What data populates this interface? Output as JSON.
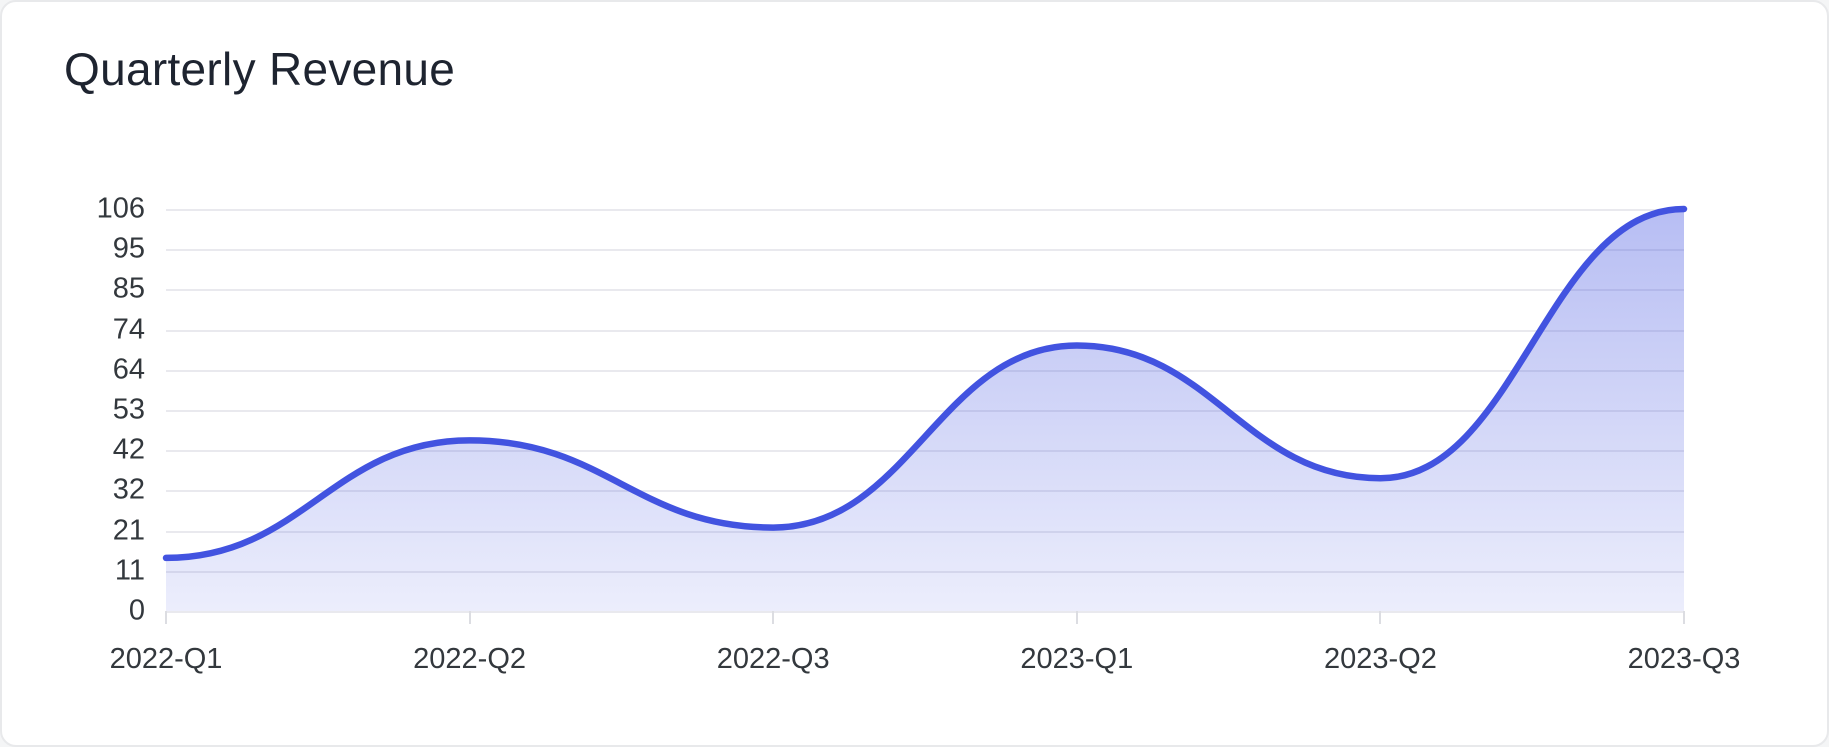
{
  "page": {
    "title": "Quarterly Revenue"
  },
  "chart_data": {
    "type": "area",
    "title": "Quarterly Revenue",
    "categories": [
      "2022-Q1",
      "2022-Q2",
      "2022-Q3",
      "2023-Q1",
      "2023-Q2",
      "2023-Q3"
    ],
    "values": [
      14,
      45,
      22,
      70,
      35,
      106
    ],
    "xlabel": "",
    "ylabel": "",
    "ylim": [
      0,
      106
    ],
    "y_tick_labels": [
      "106",
      "95",
      "85",
      "74",
      "64",
      "53",
      "42",
      "32",
      "21",
      "11",
      "0"
    ],
    "grid": "horizontal-only",
    "legend": "none",
    "line_style": "smooth-spline",
    "colors": {
      "page_bg": "#f4f5f6",
      "card_bg": "#ffffff",
      "card_border": "#e8e9eb",
      "title": "#1e2430",
      "axis_label": "#33383d",
      "gridline": "#e9e9ee",
      "axis_tick": "#dcdde2",
      "line": "#4253e0",
      "fill_top": "rgba(66,83,224,0.38)",
      "fill_bottom": "rgba(66,83,224,0.10)"
    }
  }
}
